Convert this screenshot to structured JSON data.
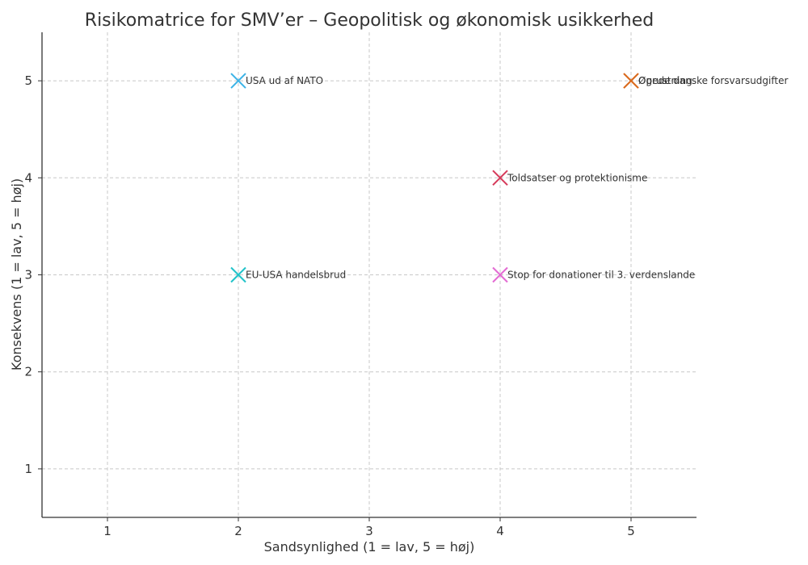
{
  "chart_data": {
    "type": "scatter",
    "title": "Risikomatrice for SMV’er – Geopolitisk og økonomisk usikkerhed",
    "xlabel": "Sandsynlighed (1 = lav, 5 = høj)",
    "ylabel": "Konsekvens (1 = lav, 5 = høj)",
    "xlim": [
      0.5,
      5.5
    ],
    "ylim": [
      0.5,
      5.5
    ],
    "xticks": [
      1,
      2,
      3,
      4,
      5
    ],
    "yticks": [
      1,
      2,
      3,
      4,
      5
    ],
    "grid": true,
    "marker": "x",
    "points": [
      {
        "label": "USA ud af NATO",
        "x": 2,
        "y": 5,
        "color": "#3cb3e6"
      },
      {
        "label": "Øgede danske forsvarsudgifter",
        "x": 5,
        "y": 5,
        "color": "#f08a4b"
      },
      {
        "label": "Oprustning",
        "x": 5,
        "y": 5,
        "color": "#d96a1e"
      },
      {
        "label": "Toldsatser og protektionisme",
        "x": 4,
        "y": 4,
        "color": "#d63a5a"
      },
      {
        "label": "EU-USA handelsbrud",
        "x": 2,
        "y": 3,
        "color": "#22c3c9"
      },
      {
        "label": "Stop for donationer til 3. verdenslande",
        "x": 4,
        "y": 3,
        "color": "#e36bd3"
      }
    ]
  }
}
